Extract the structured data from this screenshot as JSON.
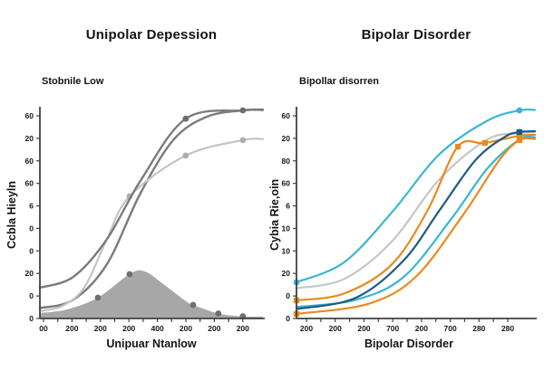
{
  "page": {
    "background": "#ffffff"
  },
  "chart_data": [
    {
      "panel": "left",
      "type": "line",
      "title": "Unipolar Depession",
      "subtitle": "Stobnile Low",
      "xlabel": "Unipuar Ntanlow",
      "ylabel": "Ccbla Hieyln",
      "x_tick_labels": [
        "00",
        "200",
        "200",
        "200",
        "400",
        "200",
        "200",
        "200"
      ],
      "y_tick_labels_top_to_bottom": [
        "60",
        "20",
        "60",
        "60",
        "6",
        "0",
        "0",
        "20",
        "0",
        "0"
      ],
      "axis_color": "#414141",
      "tick_text_color": "#161616",
      "value_scale_note": "series y values are percent of plot height (0=bottom axis, 100=top); printed tick labels are non-monotonic as shown",
      "series": [
        {
          "name": "incidence-area",
          "color": "#a7a7a7",
          "area": true,
          "line_width": 0,
          "marker_shape": "circle",
          "marker_color": "#6e6e6e",
          "marker_size": 3.4,
          "points": [
            [
              0,
              2.6
            ],
            [
              0.12,
              4.3
            ],
            [
              0.26,
              10
            ],
            [
              0.402,
              21.3
            ],
            [
              0.47,
              22.6
            ],
            [
              0.56,
              16
            ],
            [
              0.65,
              8.7
            ],
            [
              0.687,
              6.5
            ],
            [
              0.8,
              2.4
            ],
            [
              0.91,
              1.0
            ],
            [
              1,
              0.9
            ]
          ],
          "markers": [
            [
              0.26,
              10
            ],
            [
              0.402,
              21.3
            ],
            [
              0.687,
              6.5
            ],
            [
              0.8,
              2.4
            ],
            [
              0.91,
              1.0
            ]
          ]
        },
        {
          "name": "sigmoid-dark-secondary",
          "color": "#7b7b7b",
          "area": false,
          "line_width": 2.4,
          "marker_shape": "circle",
          "marker_color": "#6e6e6e",
          "marker_size": 3.4,
          "points": [
            [
              0,
              5
            ],
            [
              0.15,
              9
            ],
            [
              0.3,
              26
            ],
            [
              0.45,
              60
            ],
            [
              0.6,
              86
            ],
            [
              0.75,
              97
            ],
            [
              0.91,
              100
            ],
            [
              1,
              100.4
            ]
          ],
          "markers": []
        },
        {
          "name": "sigmoid-light",
          "color": "#c4c4c4",
          "area": false,
          "line_width": 2.2,
          "marker_shape": "circle",
          "marker_color": "#aeaeae",
          "marker_size": 3.4,
          "points": [
            [
              0,
              3.5
            ],
            [
              0.1,
              6
            ],
            [
              0.2,
              15
            ],
            [
              0.3,
              38
            ],
            [
              0.402,
              58.7
            ],
            [
              0.654,
              78.3
            ],
            [
              0.91,
              85.7
            ],
            [
              1,
              86.2
            ]
          ],
          "markers": [
            [
              0.402,
              58.7
            ],
            [
              0.654,
              78.3
            ],
            [
              0.91,
              85.7
            ]
          ]
        },
        {
          "name": "sigmoid-dark-primary",
          "color": "#7b7b7b",
          "area": false,
          "line_width": 2.4,
          "marker_shape": "circle",
          "marker_color": "#6e6e6e",
          "marker_size": 3.4,
          "points": [
            [
              0,
              14.8
            ],
            [
              0.15,
              20
            ],
            [
              0.3,
              38
            ],
            [
              0.45,
              66
            ],
            [
              0.654,
              96
            ],
            [
              0.91,
              100
            ],
            [
              1,
              100.2
            ]
          ],
          "markers": [
            [
              0.654,
              96
            ],
            [
              0.91,
              100
            ]
          ]
        }
      ]
    },
    {
      "panel": "right",
      "type": "line",
      "title": "Bipolar Disorder",
      "subtitle": "Bipollar disorren",
      "xlabel": "Bipolar Disorder",
      "ylabel": "Cybia Rie,oin",
      "x_tick_labels": [
        "200",
        "200",
        "200",
        "700",
        "200",
        "700",
        "280",
        "280"
      ],
      "y_tick_labels_top_to_bottom": [
        "60",
        "20",
        "80",
        "60",
        "6",
        "10",
        "10",
        "20",
        "0",
        "0"
      ],
      "axis_color": "#414141",
      "tick_text_color": "#161616",
      "value_scale_note": "series y values are percent of plot height (0=bottom axis, 100=top); printed tick labels are non-monotonic as shown",
      "series": [
        {
          "name": "gray",
          "color": "#c6c6c6",
          "area": false,
          "line_width": 2.2,
          "marker_shape": "circle",
          "marker_color": "#c6c6c6",
          "marker_size": 3.2,
          "points": [
            [
              0,
              14.5
            ],
            [
              0.2,
              19
            ],
            [
              0.4,
              37
            ],
            [
              0.6,
              67
            ],
            [
              0.8,
              86
            ],
            [
              0.935,
              89
            ],
            [
              1,
              89.5
            ]
          ],
          "markers": []
        },
        {
          "name": "cyan-secondary",
          "color": "#3ab5d3",
          "area": false,
          "line_width": 2.2,
          "marker_shape": "circle",
          "marker_color": "#3ab5d3",
          "marker_size": 3.2,
          "points": [
            [
              0,
              5.5
            ],
            [
              0.25,
              9
            ],
            [
              0.45,
              20
            ],
            [
              0.65,
              48
            ],
            [
              0.8,
              72
            ],
            [
              0.935,
              86
            ],
            [
              1,
              87
            ]
          ],
          "markers": []
        },
        {
          "name": "orange-secondary",
          "color": "#e88a1c",
          "area": false,
          "line_width": 2.2,
          "marker_shape": "square",
          "marker_color": "#e88a1c",
          "marker_size": 3.2,
          "points": [
            [
              0,
              2.2
            ],
            [
              0.3,
              7
            ],
            [
              0.5,
              20
            ],
            [
              0.7,
              50
            ],
            [
              0.85,
              76
            ],
            [
              0.935,
              85.7
            ],
            [
              1,
              86.3
            ]
          ],
          "markers": [
            [
              0,
              2.2
            ],
            [
              0.935,
              85.7
            ]
          ]
        },
        {
          "name": "orange-primary",
          "color": "#e88a1c",
          "area": false,
          "line_width": 2.2,
          "marker_shape": "square",
          "marker_color": "#e88a1c",
          "marker_size": 3.2,
          "points": [
            [
              0,
              8.7
            ],
            [
              0.2,
              12
            ],
            [
              0.4,
              26
            ],
            [
              0.55,
              52
            ],
            [
              0.677,
              82.6
            ],
            [
              0.79,
              84.3
            ],
            [
              0.935,
              87.8
            ],
            [
              1,
              88.2
            ]
          ],
          "markers": [
            [
              0,
              8.7
            ],
            [
              0.677,
              82.6
            ],
            [
              0.79,
              84.3
            ],
            [
              0.935,
              87.8
            ]
          ]
        },
        {
          "name": "navy",
          "color": "#1d5a80",
          "area": false,
          "line_width": 2.2,
          "marker_shape": "square",
          "marker_color": "#1d5a80",
          "marker_size": 3.2,
          "points": [
            [
              0,
              4.5
            ],
            [
              0.25,
              10
            ],
            [
              0.45,
              28
            ],
            [
              0.6,
              52
            ],
            [
              0.75,
              76
            ],
            [
              0.87,
              87
            ],
            [
              0.935,
              89.6
            ],
            [
              1,
              90
            ]
          ],
          "markers": [
            [
              0.935,
              89.6
            ]
          ]
        },
        {
          "name": "cyan-primary",
          "color": "#3ab5d3",
          "area": false,
          "line_width": 2.2,
          "marker_shape": "circle",
          "marker_color": "#3ab5d3",
          "marker_size": 3.4,
          "points": [
            [
              0,
              17.4
            ],
            [
              0.2,
              27
            ],
            [
              0.4,
              51
            ],
            [
              0.6,
              79
            ],
            [
              0.8,
              95
            ],
            [
              0.935,
              100
            ],
            [
              1,
              100.2
            ]
          ],
          "markers": [
            [
              0,
              17.4
            ],
            [
              0.935,
              100
            ]
          ]
        }
      ]
    }
  ]
}
